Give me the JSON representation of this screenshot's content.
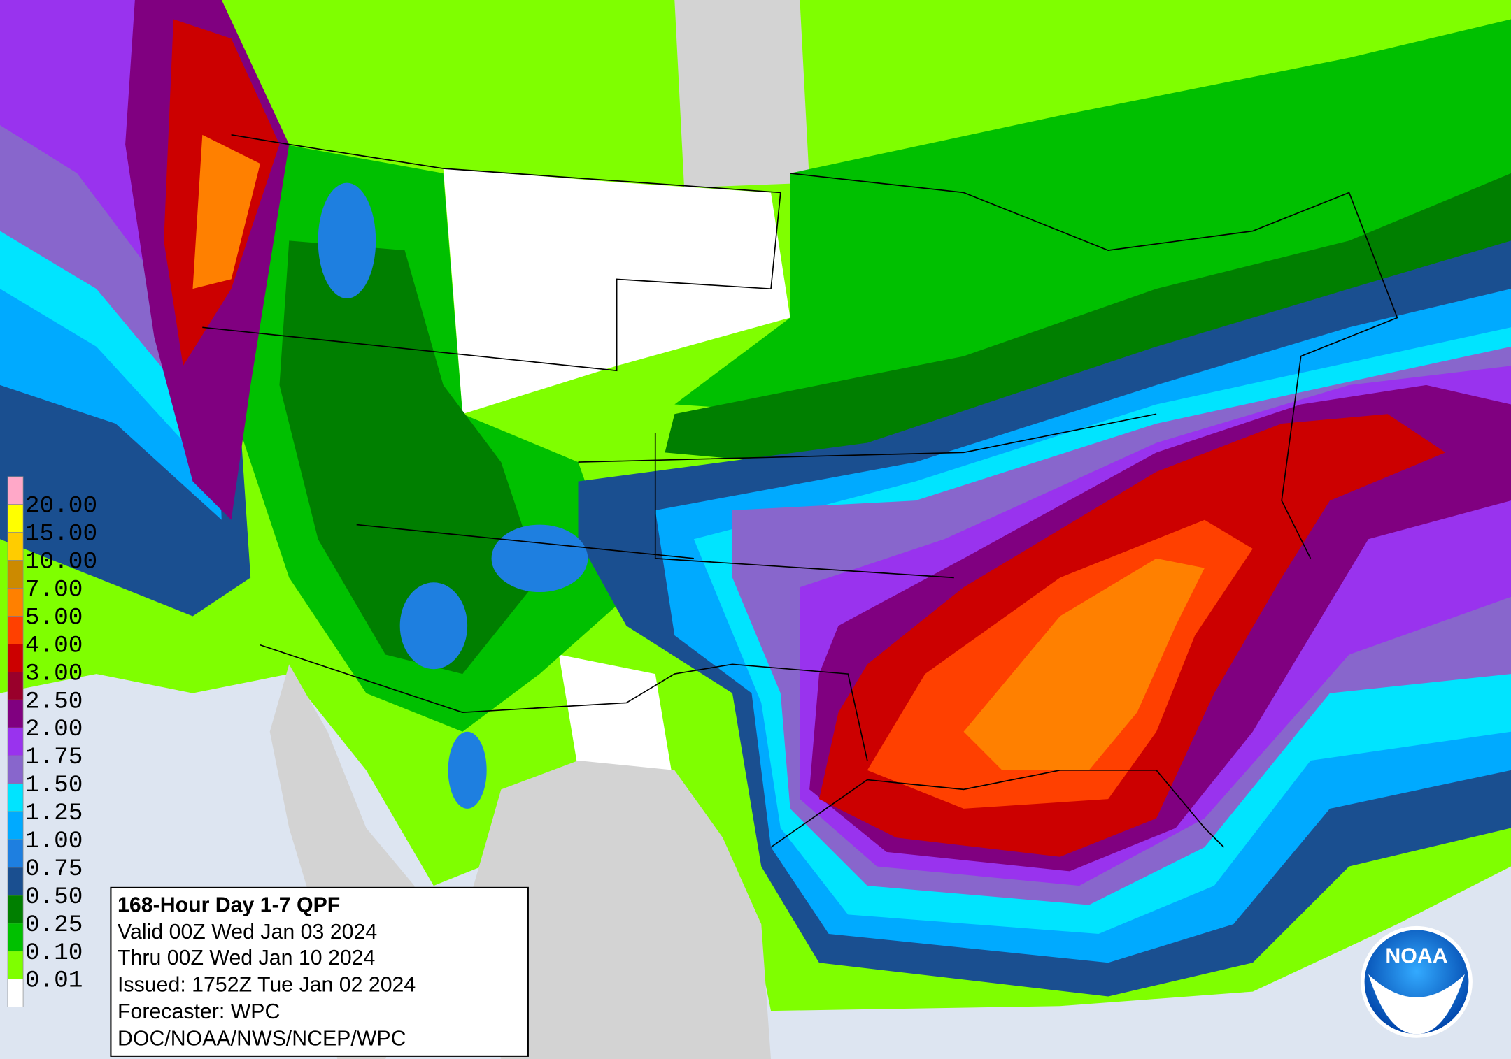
{
  "legend": {
    "items": [
      {
        "label": "20.00",
        "color": "#ffa8c8"
      },
      {
        "label": "15.00",
        "color": "#ffff00"
      },
      {
        "label": "10.00",
        "color": "#ffcc00"
      },
      {
        "label": "7.00",
        "color": "#cc8a00"
      },
      {
        "label": "5.00",
        "color": "#ff8000"
      },
      {
        "label": "4.00",
        "color": "#ff4000"
      },
      {
        "label": "3.00",
        "color": "#cc0000"
      },
      {
        "label": "2.50",
        "color": "#99002b"
      },
      {
        "label": "2.00",
        "color": "#800080"
      },
      {
        "label": "1.75",
        "color": "#9933ee"
      },
      {
        "label": "1.50",
        "color": "#8866cc"
      },
      {
        "label": "1.25",
        "color": "#00e4ff"
      },
      {
        "label": "1.00",
        "color": "#00aaff"
      },
      {
        "label": "0.75",
        "color": "#1e7fe0"
      },
      {
        "label": "0.50",
        "color": "#1a4f90"
      },
      {
        "label": "0.25",
        "color": "#007f00"
      },
      {
        "label": "0.10",
        "color": "#00c000"
      },
      {
        "label": "0.01",
        "color": "#7fff00"
      }
    ],
    "none_color": "#ffffff"
  },
  "info": {
    "title": "168-Hour Day 1-7 QPF",
    "lines": [
      "Valid 00Z Wed Jan 03 2024",
      "Thru 00Z Wed Jan 10 2024",
      "Issued: 1752Z Tue Jan 02 2024",
      "Forecaster: WPC",
      "DOC/NOAA/NWS/NCEP/WPC"
    ]
  },
  "logo": {
    "text": "NOAA"
  }
}
